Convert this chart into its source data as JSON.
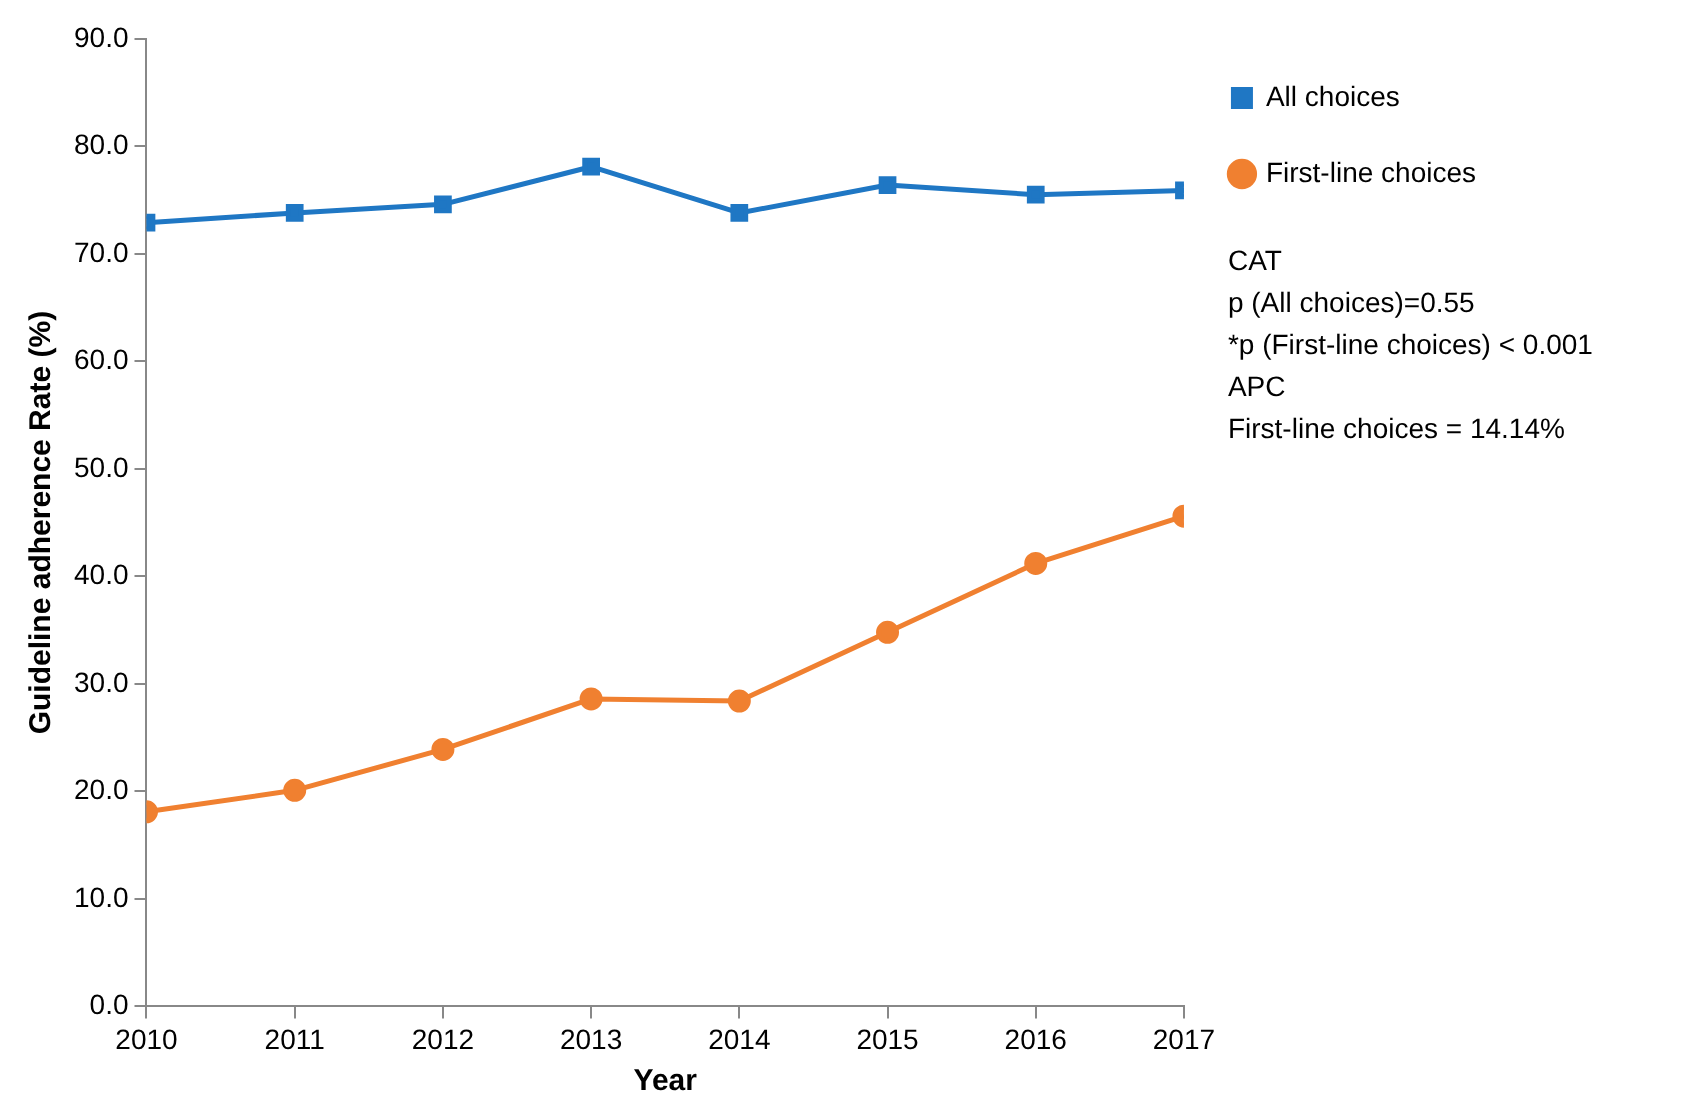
{
  "chart_data": {
    "type": "line",
    "xlabel": "Year",
    "ylabel": "Guideline adherence Rate (%)",
    "x": [
      2010,
      2011,
      2012,
      2013,
      2014,
      2015,
      2016,
      2017
    ],
    "xlim": [
      2010,
      2017
    ],
    "xticks": [
      2010,
      2011,
      2012,
      2013,
      2014,
      2015,
      2016,
      2017
    ],
    "ylim": [
      0,
      90
    ],
    "yticks": [
      {
        "value": 0,
        "label": "0.0"
      },
      {
        "value": 10,
        "label": "10.0"
      },
      {
        "value": 20,
        "label": "20.0"
      },
      {
        "value": 30,
        "label": "30.0"
      },
      {
        "value": 40,
        "label": "40.0"
      },
      {
        "value": 50,
        "label": "50.0"
      },
      {
        "value": 60,
        "label": "60.0"
      },
      {
        "value": 70,
        "label": "70.0"
      },
      {
        "value": 80,
        "label": "80.0"
      },
      {
        "value": 90,
        "label": "90.0"
      }
    ],
    "series": [
      {
        "name": "All choices",
        "color": "#1f77c4",
        "marker": "square",
        "values": [
          72.9,
          73.8,
          74.6,
          78.1,
          73.8,
          76.4,
          75.5,
          75.9
        ]
      },
      {
        "name": "First-line choices",
        "color": "#f08030",
        "marker": "circle",
        "values": [
          18.1,
          20.1,
          23.9,
          28.6,
          28.4,
          34.8,
          41.2,
          45.6
        ]
      }
    ],
    "legend": "top right",
    "grid": false,
    "line_style": "solid",
    "annotations": [
      "CAT",
      "p (All choices)=0.55",
      "*p (First-line choices) < 0.001",
      "APC",
      "First-line choices = 14.14%"
    ]
  }
}
